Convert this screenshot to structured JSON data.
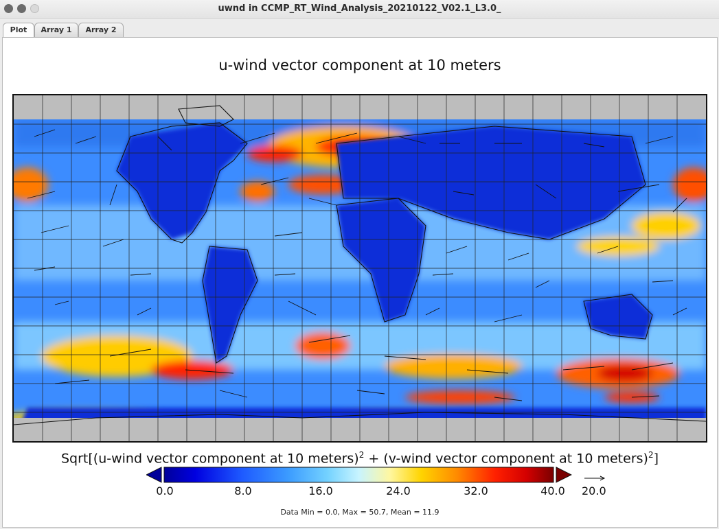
{
  "window": {
    "title": "uwnd in CCMP_RT_Wind_Analysis_20210122_V02.1_L3.0_"
  },
  "tabs": [
    {
      "label": "Plot",
      "active": true
    },
    {
      "label": "Array 1",
      "active": false
    },
    {
      "label": "Array 2",
      "active": false
    }
  ],
  "plot": {
    "title": "u-wind vector component at 10 meters",
    "colorbar_title_pre": "Sqrt[(u-wind vector component at 10 meters)",
    "colorbar_title_mid": " + (v-wind vector component at 10 meters)",
    "colorbar_title_post": "]",
    "superscript": "2",
    "ticks": [
      "0.0",
      "8.0",
      "16.0",
      "24.0",
      "32.0",
      "40.0"
    ],
    "reference_vector_label": "20.0",
    "stats": "Data Min = 0.0, Max = 50.7, Mean = 11.9",
    "colors": [
      "#00009a",
      "#0000e0",
      "#1e5aff",
      "#3c9cff",
      "#74d2ff",
      "#c8f4ff",
      "#fff7a0",
      "#ffd400",
      "#ff8c00",
      "#ff2000",
      "#d40000",
      "#7a0000"
    ]
  }
}
